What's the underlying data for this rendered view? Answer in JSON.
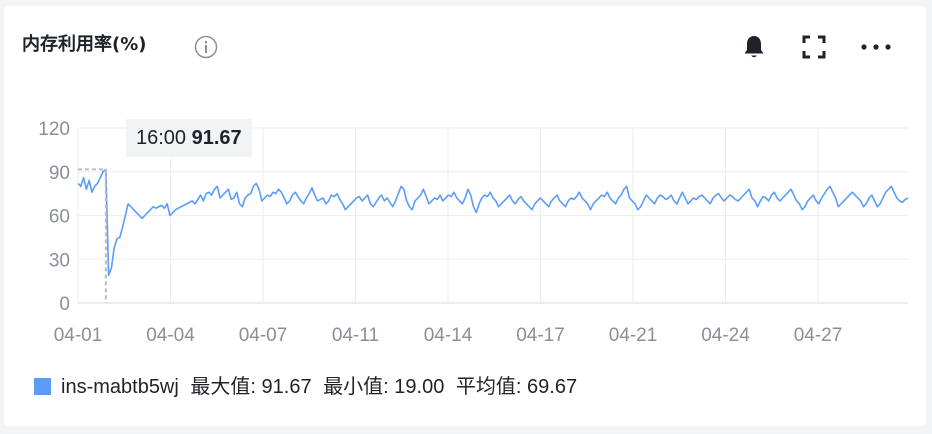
{
  "header": {
    "title": "内存利用率(%)",
    "icons": [
      "info-icon",
      "bell-icon",
      "fullscreen-icon",
      "more-icon"
    ]
  },
  "tooltip": {
    "time": "16:00",
    "value": "91.67"
  },
  "legend": {
    "series_name": "ins-mabtb5wj",
    "max_label": "最大值:",
    "max_value": "91.67",
    "min_label": "最小值:",
    "min_value": "19.00",
    "avg_label": "平均值:",
    "avg_value": "69.67"
  },
  "colors": {
    "series": "#5b9cf7",
    "grid": "#eceef1",
    "axis_text": "#8a8f99"
  },
  "chart_data": {
    "type": "line",
    "title": "内存利用率(%)",
    "xlabel": "",
    "ylabel": "",
    "ylim": [
      0,
      120
    ],
    "yticks": [
      0,
      30,
      60,
      90,
      120
    ],
    "xticks": [
      "04-01",
      "04-04",
      "04-07",
      "04-11",
      "04-14",
      "04-17",
      "04-21",
      "04-24",
      "04-27"
    ],
    "x_start": "04-01",
    "x_end": "04-29",
    "grid": true,
    "legend_position": "bottom-left",
    "series": [
      {
        "name": "ins-mabtb5wj",
        "color": "#5b9cf7",
        "y": [
          82,
          80,
          86,
          78,
          84,
          76,
          80,
          82,
          86,
          90,
          91.67,
          19,
          24,
          38,
          44,
          45,
          52,
          60,
          68,
          66,
          64,
          62,
          60,
          58,
          60,
          62,
          64,
          66,
          65,
          66,
          67,
          65,
          68,
          60,
          62,
          64,
          65,
          66,
          67,
          68,
          69,
          70,
          68,
          71,
          74,
          70,
          75,
          76,
          74,
          78,
          80,
          72,
          74,
          76,
          78,
          71,
          72,
          76,
          68,
          66,
          72,
          74,
          75,
          80,
          82,
          78,
          70,
          72,
          74,
          73,
          76,
          75,
          78,
          76,
          72,
          68,
          70,
          74,
          76,
          73,
          70,
          68,
          72,
          75,
          79,
          74,
          70,
          71,
          72,
          68,
          70,
          74,
          73,
          75,
          71,
          68,
          64,
          66,
          68,
          70,
          72,
          73,
          70,
          72,
          74,
          68,
          66,
          69,
          72,
          74,
          70,
          72,
          69,
          66,
          70,
          75,
          80,
          78,
          70,
          66,
          64,
          70,
          72,
          74,
          78,
          73,
          68,
          70,
          72,
          71,
          74,
          70,
          72,
          74,
          73,
          76,
          72,
          70,
          68,
          72,
          78,
          74,
          66,
          62,
          68,
          72,
          74,
          73,
          76,
          72,
          70,
          66,
          68,
          70,
          72,
          74,
          70,
          68,
          71,
          73,
          70,
          68,
          66,
          64,
          68,
          70,
          72,
          70,
          68,
          66,
          70,
          72,
          74,
          70,
          68,
          66,
          70,
          72,
          71,
          73,
          76,
          72,
          70,
          68,
          64,
          68,
          70,
          72,
          74,
          73,
          76,
          72,
          70,
          68,
          72,
          74,
          78,
          80,
          72,
          70,
          68,
          64,
          66,
          70,
          74,
          72,
          70,
          68,
          72,
          74,
          73,
          71,
          72,
          74,
          70,
          68,
          72,
          76,
          72,
          68,
          70,
          72,
          71,
          73,
          74,
          72,
          70,
          68,
          72,
          74,
          75,
          72,
          70,
          72,
          74,
          73,
          71,
          70,
          72,
          74,
          76,
          78,
          72,
          70,
          66,
          70,
          73,
          72,
          70,
          74,
          76,
          72,
          70,
          72,
          74,
          76,
          78,
          74,
          70,
          68,
          64,
          66,
          70,
          72,
          74,
          70,
          68,
          72,
          75,
          78,
          80,
          76,
          72,
          66,
          68,
          70,
          72,
          74,
          76,
          74,
          72,
          70,
          66,
          68,
          72,
          74,
          70,
          66,
          68,
          72,
          76,
          78,
          80,
          76,
          72,
          70,
          69,
          71,
          72
        ]
      }
    ]
  }
}
